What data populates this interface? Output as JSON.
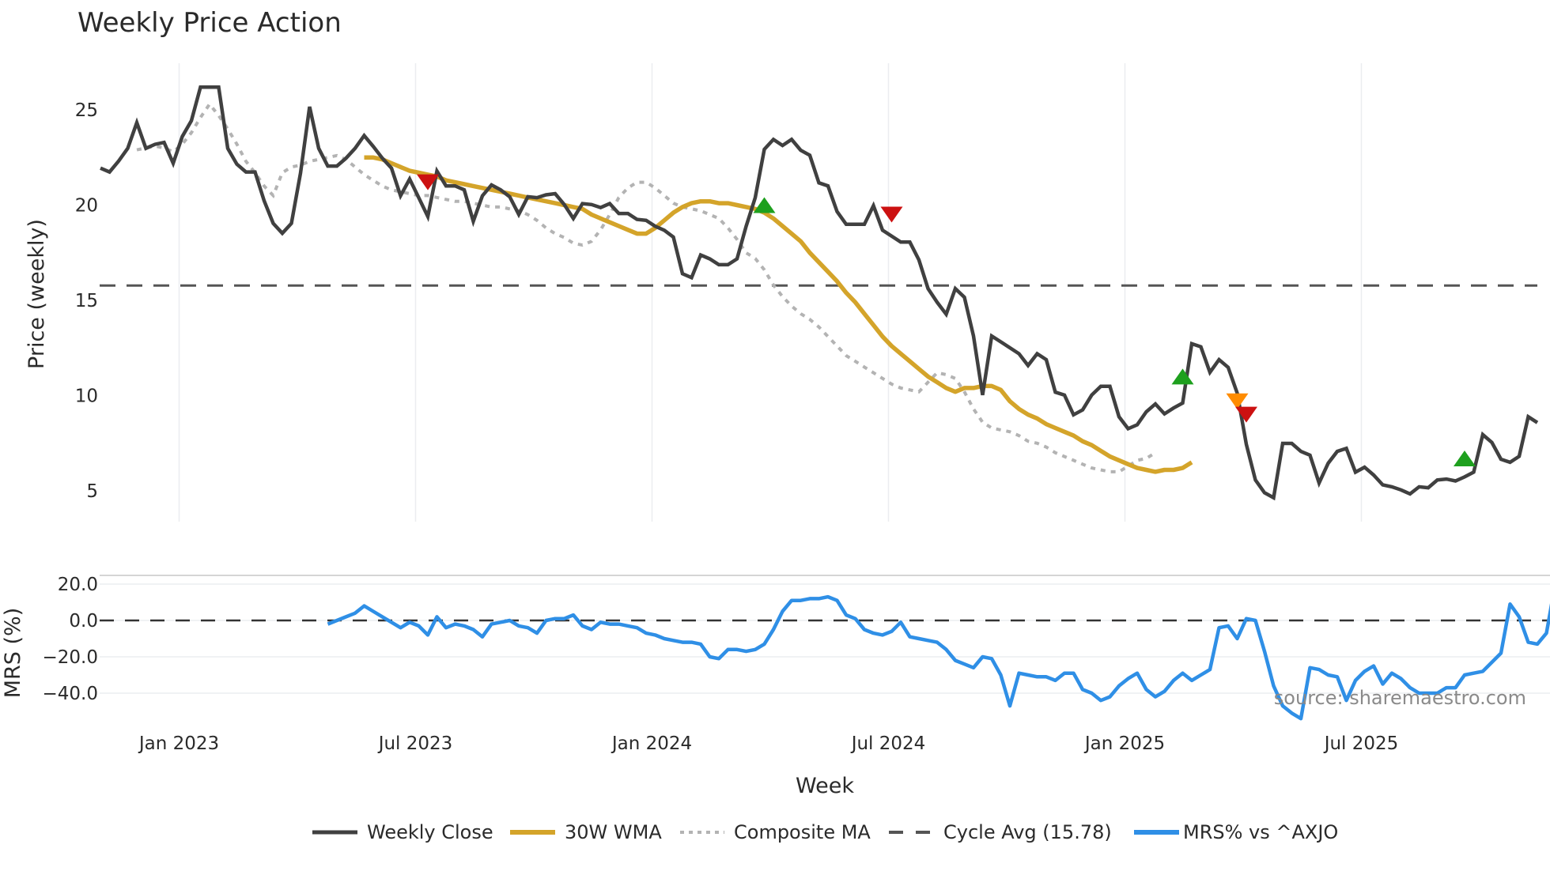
{
  "chart_data": {
    "type": "line",
    "title": "Weekly Price Action",
    "xlabel": "Week",
    "panels": [
      {
        "name": "price",
        "ylabel": "Price (weekly)",
        "yticks": [
          5,
          10,
          15,
          20,
          25
        ],
        "ylim": [
          3.4,
          27.5
        ]
      },
      {
        "name": "mrs",
        "ylabel": "MRS (%)",
        "yticks": [
          "20.0",
          "0.0",
          "−20.0",
          "−40.0"
        ],
        "ytick_values": [
          20,
          0,
          -20,
          -40
        ],
        "ylim": [
          -55,
          25
        ]
      }
    ],
    "xticks": [
      "Jan 2023",
      "Jul 2023",
      "Jan 2024",
      "Jul 2024",
      "Jan 2025",
      "Jul 2025"
    ],
    "xtick_week_index": [
      9,
      35,
      61,
      87,
      113,
      139
    ],
    "series": [
      {
        "name": "Weekly Close",
        "color": "#404040",
        "start_index": 0,
        "values": [
          21.94,
          21.74,
          22.31,
          22.98,
          24.33,
          22.98,
          23.19,
          23.29,
          22.2,
          23.6,
          24.43,
          26.19,
          26.19,
          26.19,
          22.98,
          22.15,
          21.74,
          21.74,
          20.23,
          19.04,
          18.52,
          19.04,
          21.68,
          25.16,
          22.98,
          22.05,
          22.05,
          22.46,
          22.98,
          23.65,
          23.08,
          22.46,
          21.94,
          20.49,
          21.37,
          20.39,
          19.4,
          21.79,
          21.01,
          21.01,
          20.8,
          19.15,
          20.49,
          21.06,
          20.8,
          20.44,
          19.51,
          20.44,
          20.39,
          20.54,
          20.6,
          20.03,
          19.3,
          20.08,
          20.03,
          19.87,
          20.08,
          19.56,
          19.56,
          19.25,
          19.2,
          18.89,
          18.68,
          18.32,
          16.4,
          16.19,
          17.38,
          17.18,
          16.87,
          16.87,
          17.18,
          18.89,
          20.39,
          22.93,
          23.45,
          23.13,
          23.45,
          22.88,
          22.62,
          21.17,
          21.01,
          19.66,
          18.99,
          18.99,
          18.99,
          19.97,
          18.68,
          18.37,
          18.06,
          18.06,
          17.12,
          15.62,
          14.9,
          14.27,
          15.62,
          15.16,
          13.13,
          10.03,
          13.13,
          12.82,
          12.51,
          12.2,
          11.58,
          12.2,
          11.89,
          10.18,
          10.03,
          8.99,
          9.25,
          10.03,
          10.49,
          10.49,
          8.89,
          8.26,
          8.47,
          9.15,
          9.56,
          9.04,
          9.35,
          9.61,
          12.72,
          12.56,
          11.22,
          11.89,
          11.48,
          10.13,
          7.44,
          5.57,
          4.9,
          4.64,
          7.49,
          7.49,
          7.07,
          6.87,
          5.41,
          6.45,
          7.07,
          7.23,
          5.98,
          6.24,
          5.83,
          5.31,
          5.21,
          5.05,
          4.84,
          5.21,
          5.16,
          5.57,
          5.62,
          5.52,
          5.73,
          5.98,
          7.95,
          7.54,
          6.66,
          6.5,
          6.81,
          8.89,
          8.58
        ]
      },
      {
        "name": "30W WMA",
        "color": "#d4a42a",
        "start_index": 29,
        "values": [
          22.5,
          22.5,
          22.4,
          22.2,
          22.0,
          21.8,
          21.7,
          21.6,
          21.5,
          21.3,
          21.2,
          21.1,
          21.0,
          20.9,
          20.8,
          20.7,
          20.6,
          20.5,
          20.4,
          20.3,
          20.2,
          20.1,
          20.0,
          19.9,
          19.8,
          19.5,
          19.3,
          19.1,
          18.9,
          18.7,
          18.5,
          18.5,
          18.8,
          19.2,
          19.6,
          19.9,
          20.1,
          20.2,
          20.2,
          20.1,
          20.1,
          20.0,
          19.9,
          19.8,
          19.6,
          19.3,
          18.9,
          18.5,
          18.1,
          17.5,
          17.0,
          16.5,
          16.0,
          15.4,
          14.9,
          14.3,
          13.7,
          13.1,
          12.6,
          12.2,
          11.8,
          11.4,
          11.0,
          10.7,
          10.4,
          10.2,
          10.4,
          10.4,
          10.5,
          10.5,
          10.3,
          9.7,
          9.3,
          9.0,
          8.8,
          8.5,
          8.3,
          8.1,
          7.9,
          7.6,
          7.4,
          7.1,
          6.8,
          6.6,
          6.4,
          6.2,
          6.1,
          6.0,
          6.1,
          6.1,
          6.2,
          6.5
        ]
      },
      {
        "name": "Composite MA",
        "color": "#b3b3b3",
        "start_index": 4,
        "values": [
          22.9,
          23.0,
          23.1,
          23.0,
          22.8,
          23.2,
          23.8,
          24.6,
          25.3,
          24.7,
          24.0,
          23.2,
          22.3,
          21.7,
          21.0,
          20.5,
          21.7,
          22.0,
          22.1,
          22.3,
          22.4,
          22.5,
          22.6,
          22.4,
          22.0,
          21.6,
          21.3,
          21.0,
          20.8,
          20.7,
          20.6,
          20.5,
          20.5,
          20.4,
          20.3,
          20.2,
          20.2,
          20.1,
          20.0,
          19.9,
          19.9,
          19.8,
          19.7,
          19.5,
          19.2,
          18.8,
          18.5,
          18.3,
          18.0,
          17.9,
          18.1,
          18.7,
          19.5,
          20.4,
          20.9,
          21.2,
          21.2,
          20.9,
          20.5,
          20.1,
          19.9,
          19.8,
          19.7,
          19.5,
          19.3,
          18.8,
          18.2,
          17.5,
          17.2,
          16.6,
          15.8,
          15.2,
          14.7,
          14.3,
          14.0,
          13.6,
          13.1,
          12.6,
          12.1,
          11.8,
          11.5,
          11.2,
          10.9,
          10.6,
          10.4,
          10.3,
          10.2,
          10.7,
          11.2,
          11.1,
          10.9,
          10.2,
          9.3,
          8.6,
          8.3,
          8.2,
          8.1,
          7.9,
          7.6,
          7.5,
          7.3,
          7.0,
          6.8,
          6.6,
          6.4,
          6.2,
          6.1,
          6.0,
          6.0,
          6.3,
          6.6,
          6.7,
          7.0
        ]
      },
      {
        "name": "Cycle Avg (15.78)",
        "color": "#555555",
        "value": 15.78
      },
      {
        "name": "MRS% vs ^AXJO",
        "color": "#2f8fe6",
        "panel": "mrs",
        "start_index": 25,
        "values": [
          -2,
          0,
          2,
          4,
          8,
          5,
          2,
          -1,
          -4,
          -1,
          -3,
          -8,
          2,
          -4,
          -2,
          -3,
          -5,
          -9,
          -2,
          -1,
          0,
          -3,
          -4,
          -7,
          0,
          1,
          1,
          3,
          -3,
          -5,
          -1,
          -2,
          -2,
          -3,
          -4,
          -7,
          -8,
          -10,
          -11,
          -12,
          -12,
          -13,
          -20,
          -21,
          -16,
          -16,
          -17,
          -16,
          -13,
          -5,
          5,
          11,
          11,
          12,
          12,
          13,
          11,
          3,
          1,
          -5,
          -7,
          -8,
          -6,
          -1,
          -9,
          -10,
          -11,
          -12,
          -16,
          -22,
          -24,
          -26,
          -20,
          -21,
          -30,
          -47,
          -29,
          -30,
          -31,
          -31,
          -33,
          -29,
          -29,
          -38,
          -40,
          -44,
          -42,
          -36,
          -32,
          -29,
          -38,
          -42,
          -39,
          -33,
          -29,
          -33,
          -30,
          -27,
          -4,
          -3,
          -10,
          1,
          0,
          -17,
          -36,
          -47,
          -51,
          -54,
          -26,
          -27,
          -30,
          -31,
          -44,
          -33,
          -28,
          -25,
          -35,
          -29,
          -32,
          -37,
          -40,
          -40,
          -40,
          -37,
          -37,
          -30,
          -29,
          -28,
          -23,
          -18,
          9,
          2,
          -12,
          -13,
          -7,
          21,
          16
        ]
      }
    ],
    "signals": [
      {
        "type": "sell",
        "shape": "down-triangle",
        "color": "#cc1111",
        "week_index": 36,
        "y": 21.2
      },
      {
        "type": "buy",
        "shape": "up-triangle",
        "color": "#1ea01e",
        "week_index": 73,
        "y": 20.0
      },
      {
        "type": "sell",
        "shape": "down-triangle",
        "color": "#cc1111",
        "week_index": 87,
        "y": 19.5
      },
      {
        "type": "buy",
        "shape": "up-triangle",
        "color": "#1ea01e",
        "week_index": 119,
        "y": 11.0
      },
      {
        "type": "warning",
        "shape": "down-triangle",
        "color": "#ff8c00",
        "week_index": 125,
        "y": 9.7
      },
      {
        "type": "sell",
        "shape": "down-triangle",
        "color": "#cc1111",
        "week_index": 126,
        "y": 9.0
      },
      {
        "type": "buy",
        "shape": "up-triangle",
        "color": "#1ea01e",
        "week_index": 150,
        "y": 6.7
      }
    ],
    "legend": [
      "Weekly Close",
      "30W WMA",
      "Composite MA",
      "Cycle Avg (15.78)",
      "MRS% vs ^AXJO"
    ],
    "annotation": "source: sharemaestro.com"
  },
  "labels": {
    "title": "Weekly Price Action",
    "price_ylabel": "Price (weekly)",
    "mrs_ylabel": "MRS (%)",
    "xlabel": "Week",
    "source": "source: sharemaestro.com",
    "legend": {
      "close": "Weekly Close",
      "wma": "30W WMA",
      "composite": "Composite MA",
      "cycle": "Cycle Avg (15.78)",
      "mrs": "MRS% vs ^AXJO"
    }
  }
}
